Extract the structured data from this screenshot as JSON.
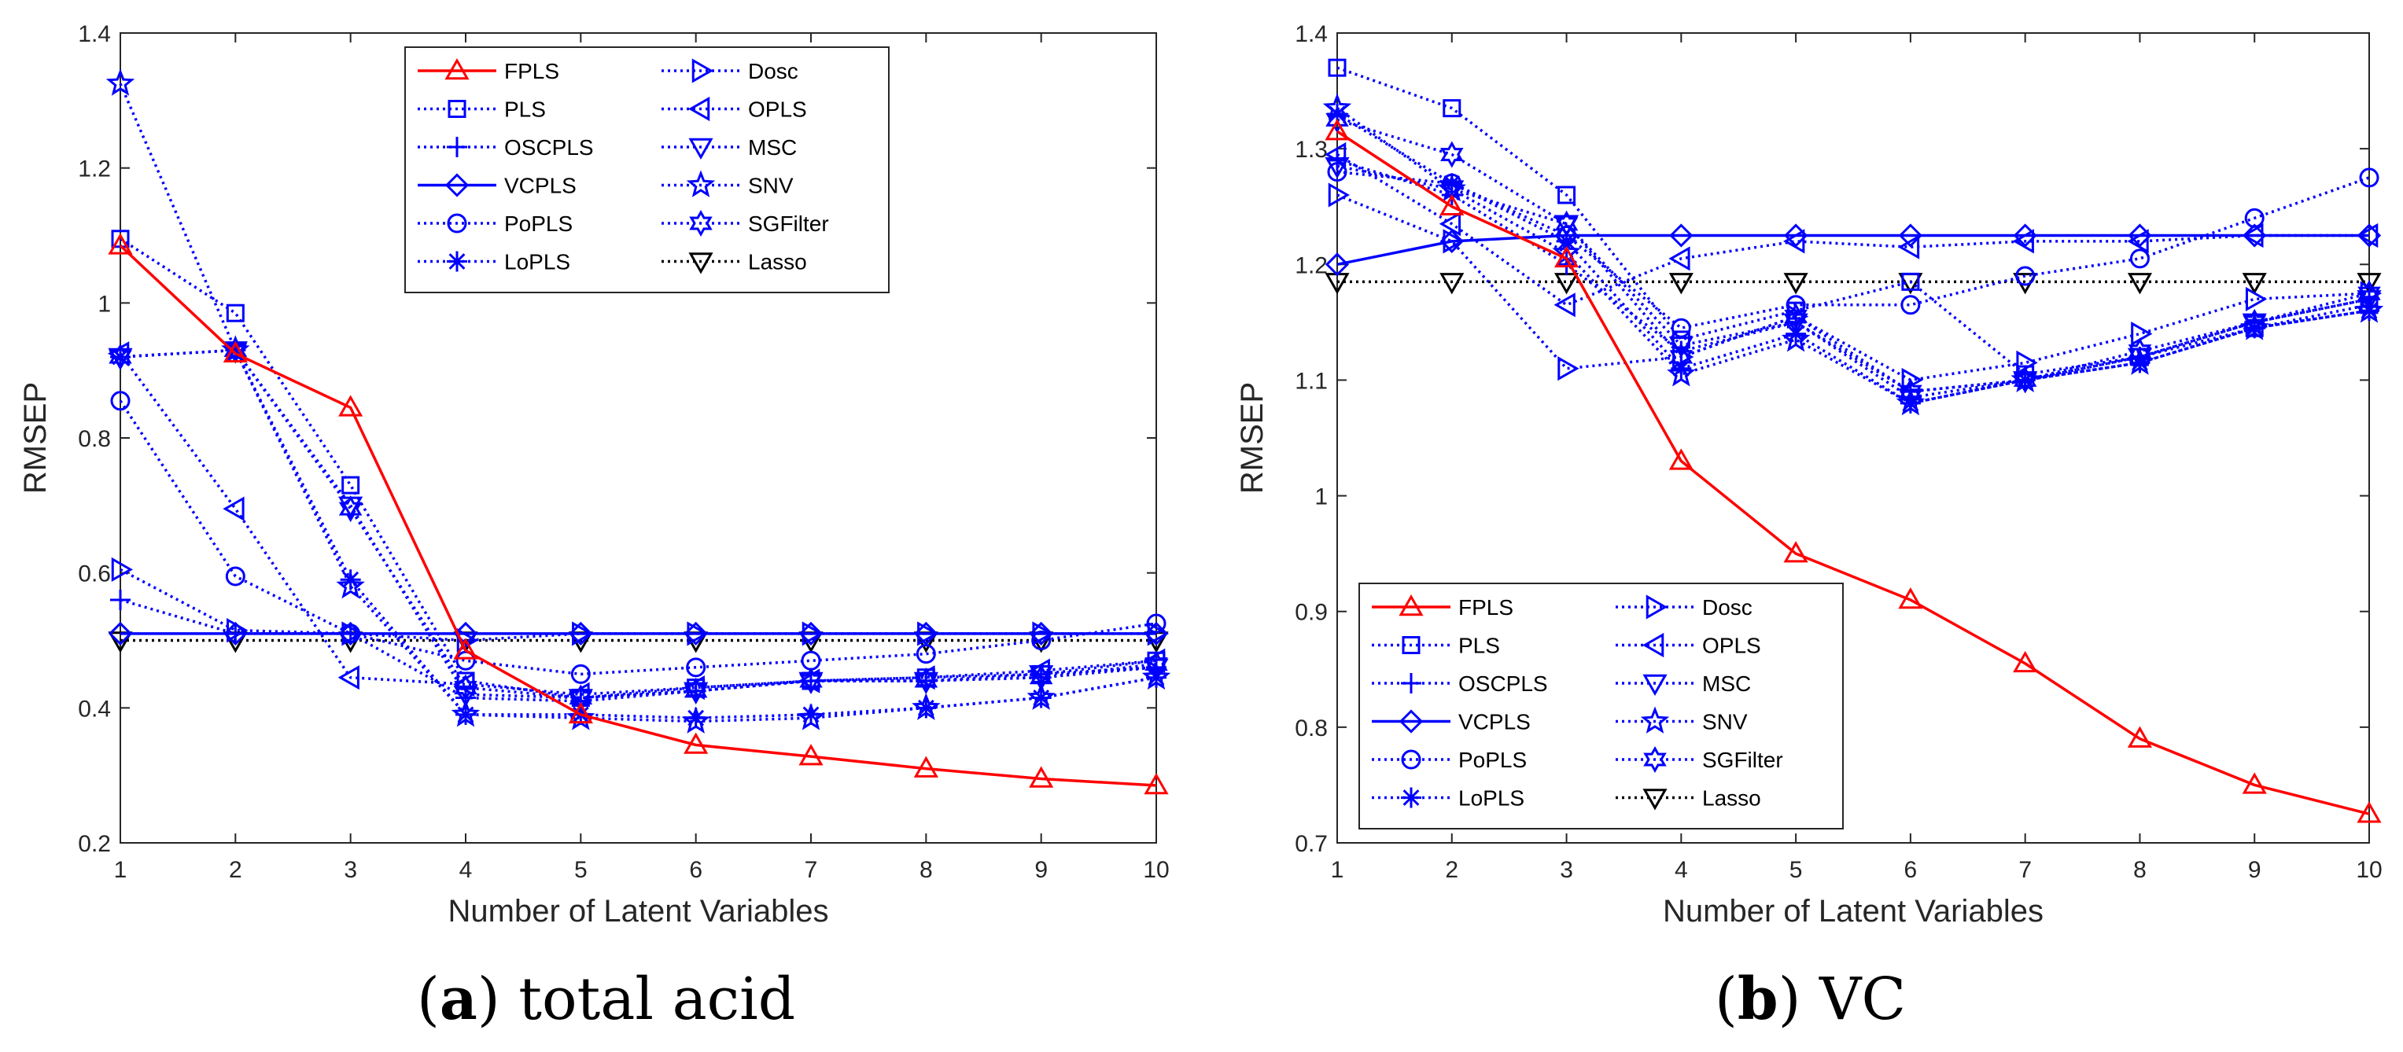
{
  "chart_data": [
    {
      "type": "line",
      "ylabel": "RMSEP",
      "xlabel": "Number of Latent Variables",
      "xlim": [
        1,
        10
      ],
      "ylim": [
        0.2,
        1.4
      ],
      "x": [
        1,
        2,
        3,
        4,
        5,
        6,
        7,
        8,
        9,
        10
      ],
      "x_ticks": [
        "1",
        "2",
        "3",
        "4",
        "5",
        "6",
        "7",
        "8",
        "9",
        "10"
      ],
      "y_ticks": [
        "0.2",
        "0.4",
        "0.6",
        "0.8",
        "1",
        "1.2",
        "1.4"
      ],
      "y_tick_values": [
        0.2,
        0.4,
        0.6,
        0.8,
        1.0,
        1.2,
        1.4
      ],
      "legend_position": "top-right",
      "caption_letter": "a",
      "caption_text": "total acid",
      "series": [
        {
          "name": "FPLS",
          "values": [
            1.085,
            0.925,
            0.845,
            0.485,
            0.39,
            0.345,
            0.328,
            0.31,
            0.295,
            0.285
          ]
        },
        {
          "name": "PLS",
          "values": [
            1.095,
            0.985,
            0.73,
            0.44,
            0.415,
            0.43,
            0.44,
            0.445,
            0.45,
            0.47
          ]
        },
        {
          "name": "OSCPLS",
          "values": [
            0.56,
            0.51,
            0.51,
            0.415,
            0.41,
            0.425,
            0.44,
            0.44,
            0.445,
            0.46
          ]
        },
        {
          "name": "VCPLS",
          "values": [
            0.51,
            0.51,
            0.51,
            0.51,
            0.51,
            0.51,
            0.51,
            0.51,
            0.51,
            0.51
          ]
        },
        {
          "name": "PoPLS",
          "values": [
            0.855,
            0.595,
            0.51,
            0.47,
            0.45,
            0.46,
            0.47,
            0.48,
            0.5,
            0.525
          ]
        },
        {
          "name": "LoPLS",
          "values": [
            0.92,
            0.93,
            0.59,
            0.39,
            0.39,
            0.385,
            0.39,
            0.4,
            0.415,
            0.445
          ]
        },
        {
          "name": "Dosc",
          "values": [
            0.605,
            0.515,
            0.51,
            0.5,
            0.51,
            0.51,
            0.51,
            0.51,
            0.51,
            0.51
          ]
        },
        {
          "name": "OPLS",
          "values": [
            0.925,
            0.695,
            0.445,
            0.435,
            0.42,
            0.43,
            0.44,
            0.445,
            0.455,
            0.47
          ]
        },
        {
          "name": "MSC",
          "values": [
            0.92,
            0.93,
            0.7,
            0.42,
            0.415,
            0.425,
            0.44,
            0.44,
            0.45,
            0.46
          ]
        },
        {
          "name": "SNV",
          "values": [
            1.325,
            0.93,
            0.58,
            0.39,
            0.385,
            0.38,
            0.385,
            0.4,
            0.415,
            0.445
          ]
        },
        {
          "name": "SGFilter",
          "values": [
            0.92,
            0.93,
            0.695,
            0.43,
            0.415,
            0.425,
            0.44,
            0.44,
            0.445,
            0.465
          ]
        },
        {
          "name": "Lasso",
          "values": [
            0.5,
            0.5,
            0.5,
            0.5,
            0.5,
            0.5,
            0.5,
            0.5,
            0.5,
            0.5
          ]
        }
      ]
    },
    {
      "type": "line",
      "ylabel": "RMSEP",
      "xlabel": "Number of Latent Variables",
      "xlim": [
        1,
        10
      ],
      "ylim": [
        0.7,
        1.4
      ],
      "x": [
        1,
        2,
        3,
        4,
        5,
        6,
        7,
        8,
        9,
        10
      ],
      "x_ticks": [
        "1",
        "2",
        "3",
        "4",
        "5",
        "6",
        "7",
        "8",
        "9",
        "10"
      ],
      "y_ticks": [
        "0.7",
        "0.8",
        "0.9",
        "1",
        "1.1",
        "1.2",
        "1.3",
        "1.4"
      ],
      "y_tick_values": [
        0.7,
        0.8,
        0.9,
        1.0,
        1.1,
        1.2,
        1.3,
        1.4
      ],
      "legend_position": "bottom-left",
      "caption_letter": "b",
      "caption_text": "VC",
      "series": [
        {
          "name": "FPLS",
          "values": [
            1.315,
            1.25,
            1.205,
            1.03,
            0.95,
            0.91,
            0.855,
            0.79,
            0.75,
            0.725
          ]
        },
        {
          "name": "PLS",
          "values": [
            1.37,
            1.335,
            1.26,
            1.135,
            1.16,
            1.185,
            1.105,
            1.12,
            1.145,
            1.165
          ]
        },
        {
          "name": "OSCPLS",
          "values": [
            1.29,
            1.26,
            1.2,
            1.125,
            1.15,
            1.09,
            1.1,
            1.12,
            1.15,
            1.17
          ]
        },
        {
          "name": "VCPLS",
          "values": [
            1.2,
            1.22,
            1.225,
            1.225,
            1.225,
            1.225,
            1.225,
            1.225,
            1.225,
            1.225
          ]
        },
        {
          "name": "PoPLS",
          "values": [
            1.28,
            1.27,
            1.225,
            1.145,
            1.165,
            1.165,
            1.19,
            1.205,
            1.24,
            1.275
          ]
        },
        {
          "name": "LoPLS",
          "values": [
            1.33,
            1.27,
            1.22,
            1.11,
            1.14,
            1.08,
            1.1,
            1.115,
            1.145,
            1.16
          ]
        },
        {
          "name": "Dosc",
          "values": [
            1.26,
            1.22,
            1.11,
            1.12,
            1.155,
            1.1,
            1.115,
            1.14,
            1.17,
            1.175
          ]
        },
        {
          "name": "OPLS",
          "values": [
            1.295,
            1.235,
            1.165,
            1.205,
            1.22,
            1.215,
            1.22,
            1.22,
            1.225,
            1.225
          ]
        },
        {
          "name": "MSC",
          "values": [
            1.285,
            1.265,
            1.235,
            1.13,
            1.15,
            1.085,
            1.1,
            1.12,
            1.15,
            1.17
          ]
        },
        {
          "name": "SNV",
          "values": [
            1.335,
            1.265,
            1.21,
            1.105,
            1.135,
            1.08,
            1.1,
            1.115,
            1.145,
            1.16
          ]
        },
        {
          "name": "SGFilter",
          "values": [
            1.325,
            1.295,
            1.235,
            1.12,
            1.155,
            1.09,
            1.1,
            1.125,
            1.15,
            1.175
          ]
        },
        {
          "name": "Lasso",
          "values": [
            1.185,
            1.185,
            1.185,
            1.185,
            1.185,
            1.185,
            1.185,
            1.185,
            1.185,
            1.185
          ]
        }
      ]
    }
  ],
  "colors": {
    "fpls": "#ff0000",
    "others": "#0000ff",
    "lasso": "#000000"
  }
}
